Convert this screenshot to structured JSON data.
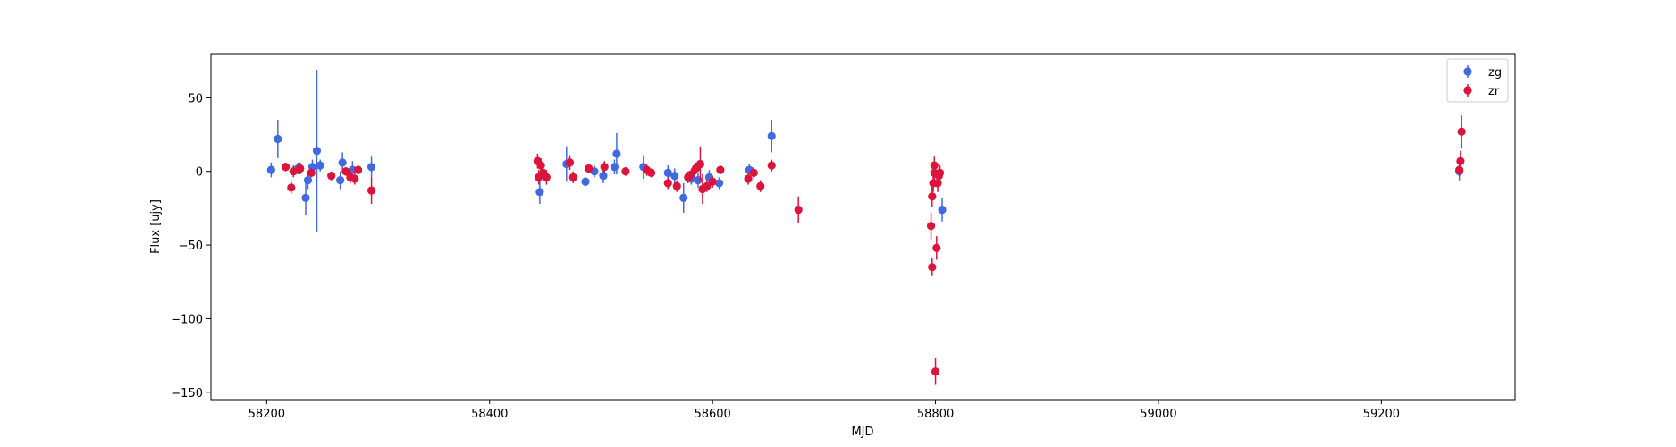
{
  "chart_data": {
    "type": "scatter",
    "xlabel": "MJD",
    "ylabel": "Flux [ujy]",
    "xlim": [
      58150,
      59320
    ],
    "ylim": [
      -155,
      80
    ],
    "x_ticks": [
      58200,
      58400,
      58600,
      58800,
      59000,
      59200
    ],
    "y_ticks": [
      50,
      0,
      -50,
      -100,
      -150
    ],
    "x_tick_labels": [
      "58200",
      "58400",
      "58600",
      "58800",
      "59000",
      "59200"
    ],
    "y_tick_labels": [
      "50",
      "0",
      "−50",
      "−100",
      "−150"
    ],
    "legend_position": "upper right",
    "grid": false,
    "series": [
      {
        "name": "zg",
        "color": "#4169e1",
        "points": [
          {
            "x": 58204,
            "y": 1,
            "err": 5
          },
          {
            "x": 58210,
            "y": 22,
            "err": 13
          },
          {
            "x": 58228,
            "y": 2,
            "err": 4
          },
          {
            "x": 58235,
            "y": -18,
            "err": 12
          },
          {
            "x": 58237,
            "y": -6,
            "err": 6
          },
          {
            "x": 58241,
            "y": 3,
            "err": 5
          },
          {
            "x": 58245,
            "y": 14,
            "err": 55
          },
          {
            "x": 58248,
            "y": 4,
            "err": 4
          },
          {
            "x": 58266,
            "y": -6,
            "err": 6
          },
          {
            "x": 58268,
            "y": 6,
            "err": 7
          },
          {
            "x": 58277,
            "y": 1,
            "err": 6
          },
          {
            "x": 58294,
            "y": 3,
            "err": 7
          },
          {
            "x": 58445,
            "y": -14,
            "err": 8
          },
          {
            "x": 58469,
            "y": 5,
            "err": 12
          },
          {
            "x": 58486,
            "y": -7,
            "err": 3
          },
          {
            "x": 58494,
            "y": 0,
            "err": 4
          },
          {
            "x": 58502,
            "y": -3,
            "err": 5
          },
          {
            "x": 58512,
            "y": 3,
            "err": 5
          },
          {
            "x": 58514,
            "y": 12,
            "err": 14
          },
          {
            "x": 58538,
            "y": 3,
            "err": 8
          },
          {
            "x": 58560,
            "y": -1,
            "err": 5
          },
          {
            "x": 58566,
            "y": -3,
            "err": 5
          },
          {
            "x": 58574,
            "y": -18,
            "err": 10
          },
          {
            "x": 58581,
            "y": -5,
            "err": 4
          },
          {
            "x": 58587,
            "y": -6,
            "err": 5
          },
          {
            "x": 58597,
            "y": -4,
            "err": 5
          },
          {
            "x": 58606,
            "y": -8,
            "err": 4
          },
          {
            "x": 58633,
            "y": 1,
            "err": 4
          },
          {
            "x": 58653,
            "y": 24,
            "err": 11
          },
          {
            "x": 58806,
            "y": -26,
            "err": 8
          },
          {
            "x": 59270,
            "y": 0,
            "err": 6
          }
        ]
      },
      {
        "name": "zr",
        "color": "#dc143c",
        "points": [
          {
            "x": 58217,
            "y": 3,
            "err": 3
          },
          {
            "x": 58222,
            "y": -11,
            "err": 4
          },
          {
            "x": 58224,
            "y": 0,
            "err": 4
          },
          {
            "x": 58230,
            "y": 2,
            "err": 4
          },
          {
            "x": 58240,
            "y": -1,
            "err": 3
          },
          {
            "x": 58258,
            "y": -3,
            "err": 3
          },
          {
            "x": 58271,
            "y": 0,
            "err": 3
          },
          {
            "x": 58275,
            "y": -4,
            "err": 4
          },
          {
            "x": 58279,
            "y": -5,
            "err": 4
          },
          {
            "x": 58282,
            "y": 1,
            "err": 3
          },
          {
            "x": 58294,
            "y": -13,
            "err": 9
          },
          {
            "x": 58443,
            "y": 7,
            "err": 5
          },
          {
            "x": 58444,
            "y": -4,
            "err": 5
          },
          {
            "x": 58446,
            "y": 4,
            "err": 5
          },
          {
            "x": 58448,
            "y": -1,
            "err": 4
          },
          {
            "x": 58451,
            "y": -4,
            "err": 5
          },
          {
            "x": 58472,
            "y": 6,
            "err": 5
          },
          {
            "x": 58475,
            "y": -4,
            "err": 4
          },
          {
            "x": 58489,
            "y": 2,
            "err": 3
          },
          {
            "x": 58503,
            "y": 3,
            "err": 4
          },
          {
            "x": 58522,
            "y": 0,
            "err": 3
          },
          {
            "x": 58541,
            "y": 1,
            "err": 4
          },
          {
            "x": 58545,
            "y": -1,
            "err": 3
          },
          {
            "x": 58560,
            "y": -8,
            "err": 4
          },
          {
            "x": 58568,
            "y": -10,
            "err": 4
          },
          {
            "x": 58578,
            "y": -4,
            "err": 4
          },
          {
            "x": 58581,
            "y": -2,
            "err": 4
          },
          {
            "x": 58585,
            "y": 2,
            "err": 4
          },
          {
            "x": 58589,
            "y": 5,
            "err": 12
          },
          {
            "x": 58591,
            "y": -12,
            "err": 10
          },
          {
            "x": 58595,
            "y": -10,
            "err": 4
          },
          {
            "x": 58600,
            "y": -7,
            "err": 4
          },
          {
            "x": 58607,
            "y": 1,
            "err": 3
          },
          {
            "x": 58632,
            "y": -5,
            "err": 4
          },
          {
            "x": 58637,
            "y": -1,
            "err": 4
          },
          {
            "x": 58643,
            "y": -10,
            "err": 4
          },
          {
            "x": 58653,
            "y": 4,
            "err": 4
          },
          {
            "x": 58677,
            "y": -26,
            "err": 9
          },
          {
            "x": 58796,
            "y": -37,
            "err": 9
          },
          {
            "x": 58797,
            "y": -17,
            "err": 7
          },
          {
            "x": 58797,
            "y": -65,
            "err": 6
          },
          {
            "x": 58798,
            "y": -8,
            "err": 6
          },
          {
            "x": 58799,
            "y": 4,
            "err": 6
          },
          {
            "x": 58799,
            "y": -1,
            "err": 5
          },
          {
            "x": 58800,
            "y": -136,
            "err": 9
          },
          {
            "x": 58801,
            "y": -52,
            "err": 8
          },
          {
            "x": 58802,
            "y": -8,
            "err": 6
          },
          {
            "x": 58803,
            "y": -3,
            "err": 5
          },
          {
            "x": 58804,
            "y": -1,
            "err": 5
          },
          {
            "x": 59270,
            "y": 1,
            "err": 4
          },
          {
            "x": 59271,
            "y": 7,
            "err": 7
          },
          {
            "x": 59272,
            "y": 27,
            "err": 11
          }
        ]
      }
    ]
  }
}
